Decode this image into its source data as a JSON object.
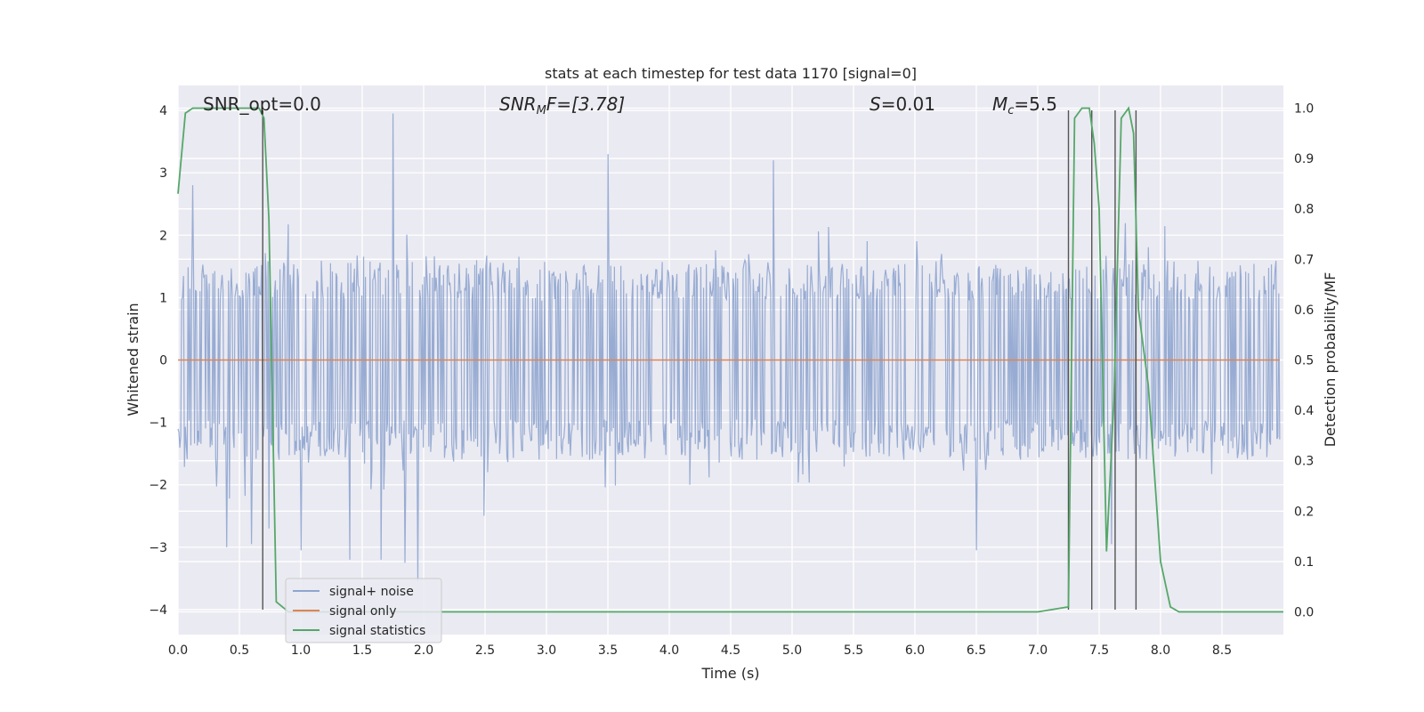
{
  "chart_data": {
    "type": "line",
    "title": "stats at each timestep for test data 1170 [signal=0]",
    "xlabel": "Time (s)",
    "ylabel_left": "Whitened strain",
    "ylabel_right": "Detection probability/MF",
    "xlim": [
      0.0,
      9.0
    ],
    "ylim_left": [
      -4.4,
      4.4
    ],
    "ylim_right": [
      -0.045,
      1.045
    ],
    "x_ticks": [
      "0.0",
      "0.5",
      "1.0",
      "1.5",
      "2.0",
      "2.5",
      "3.0",
      "3.5",
      "4.0",
      "4.5",
      "5.0",
      "5.5",
      "6.0",
      "6.5",
      "7.0",
      "7.5",
      "8.0",
      "8.5"
    ],
    "x_tick_values": [
      0.0,
      0.5,
      1.0,
      1.5,
      2.0,
      2.5,
      3.0,
      3.5,
      4.0,
      4.5,
      5.0,
      5.5,
      6.0,
      6.5,
      7.0,
      7.5,
      8.0,
      8.5
    ],
    "y_left_ticks": [
      "−4",
      "−3",
      "−2",
      "−1",
      "0",
      "1",
      "2",
      "3",
      "4"
    ],
    "y_left_tick_values": [
      -4,
      -3,
      -2,
      -1,
      0,
      1,
      2,
      3,
      4
    ],
    "y_right_ticks": [
      "0.0",
      "0.1",
      "0.2",
      "0.3",
      "0.4",
      "0.5",
      "0.6",
      "0.7",
      "0.8",
      "0.9",
      "1.0"
    ],
    "y_right_tick_values": [
      0.0,
      0.1,
      0.2,
      0.3,
      0.4,
      0.5,
      0.6,
      0.7,
      0.8,
      0.9,
      1.0
    ],
    "grid": true,
    "legend_position": "lower-left",
    "annotations": {
      "snr_opt": "SNR_opt=0.0",
      "snr_mf_label": "SNR",
      "snr_mf_sub": "M",
      "snr_mf_rest": "F=[3.78]",
      "s_label": "S",
      "s_rest": "=0.01",
      "mc_label": "M",
      "mc_sub": "c",
      "mc_rest": "=5.5"
    },
    "series": [
      {
        "name": "signal+ noise",
        "color": "#8fa5cf",
        "kind": "noise",
        "values_summary": {
          "n": 1200,
          "typical_range": [
            -1.6,
            1.6
          ],
          "peak_max": 3.95,
          "peak_min": -3.55
        },
        "spikes": [
          {
            "x": 1.75,
            "y": 3.95
          },
          {
            "x": 3.5,
            "y": 3.3
          },
          {
            "x": 4.85,
            "y": 3.2
          },
          {
            "x": 0.12,
            "y": 2.8
          },
          {
            "x": 1.95,
            "y": -3.55
          },
          {
            "x": 1.85,
            "y": -3.25
          },
          {
            "x": 1.65,
            "y": -3.2
          },
          {
            "x": 1.4,
            "y": -3.2
          },
          {
            "x": 6.5,
            "y": -3.05
          },
          {
            "x": 0.4,
            "y": -3.0
          },
          {
            "x": 0.6,
            "y": -2.95
          },
          {
            "x": 7.6,
            "y": -2.95
          },
          {
            "x": 1.0,
            "y": -3.05
          }
        ]
      },
      {
        "name": "signal only",
        "color": "#dd8452",
        "kind": "flat",
        "y": 0.0
      },
      {
        "name": "signal statistics",
        "color": "#55a868",
        "kind": "line",
        "x": [
          0.0,
          0.06,
          0.12,
          0.2,
          0.3,
          0.4,
          0.5,
          0.6,
          0.66,
          0.7,
          0.74,
          0.8,
          0.9,
          1.2,
          2.0,
          3.0,
          4.0,
          5.0,
          6.0,
          7.0,
          7.25,
          7.3,
          7.36,
          7.42,
          7.46,
          7.5,
          7.56,
          7.62,
          7.68,
          7.74,
          7.78,
          7.82,
          7.9,
          8.0,
          8.08,
          8.15,
          8.5,
          9.0
        ],
        "y": [
          0.83,
          0.99,
          1.0,
          1.0,
          1.0,
          1.0,
          1.0,
          1.0,
          1.0,
          0.98,
          0.78,
          0.02,
          0.0,
          0.0,
          0.0,
          0.0,
          0.0,
          0.0,
          0.0,
          0.0,
          0.01,
          0.98,
          1.0,
          1.0,
          0.93,
          0.8,
          0.12,
          0.42,
          0.98,
          1.0,
          0.95,
          0.6,
          0.45,
          0.1,
          0.01,
          0.0,
          0.0,
          0.0
        ]
      }
    ],
    "vertical_markers": [
      0.69,
      7.25,
      7.44,
      7.63,
      7.8
    ]
  }
}
